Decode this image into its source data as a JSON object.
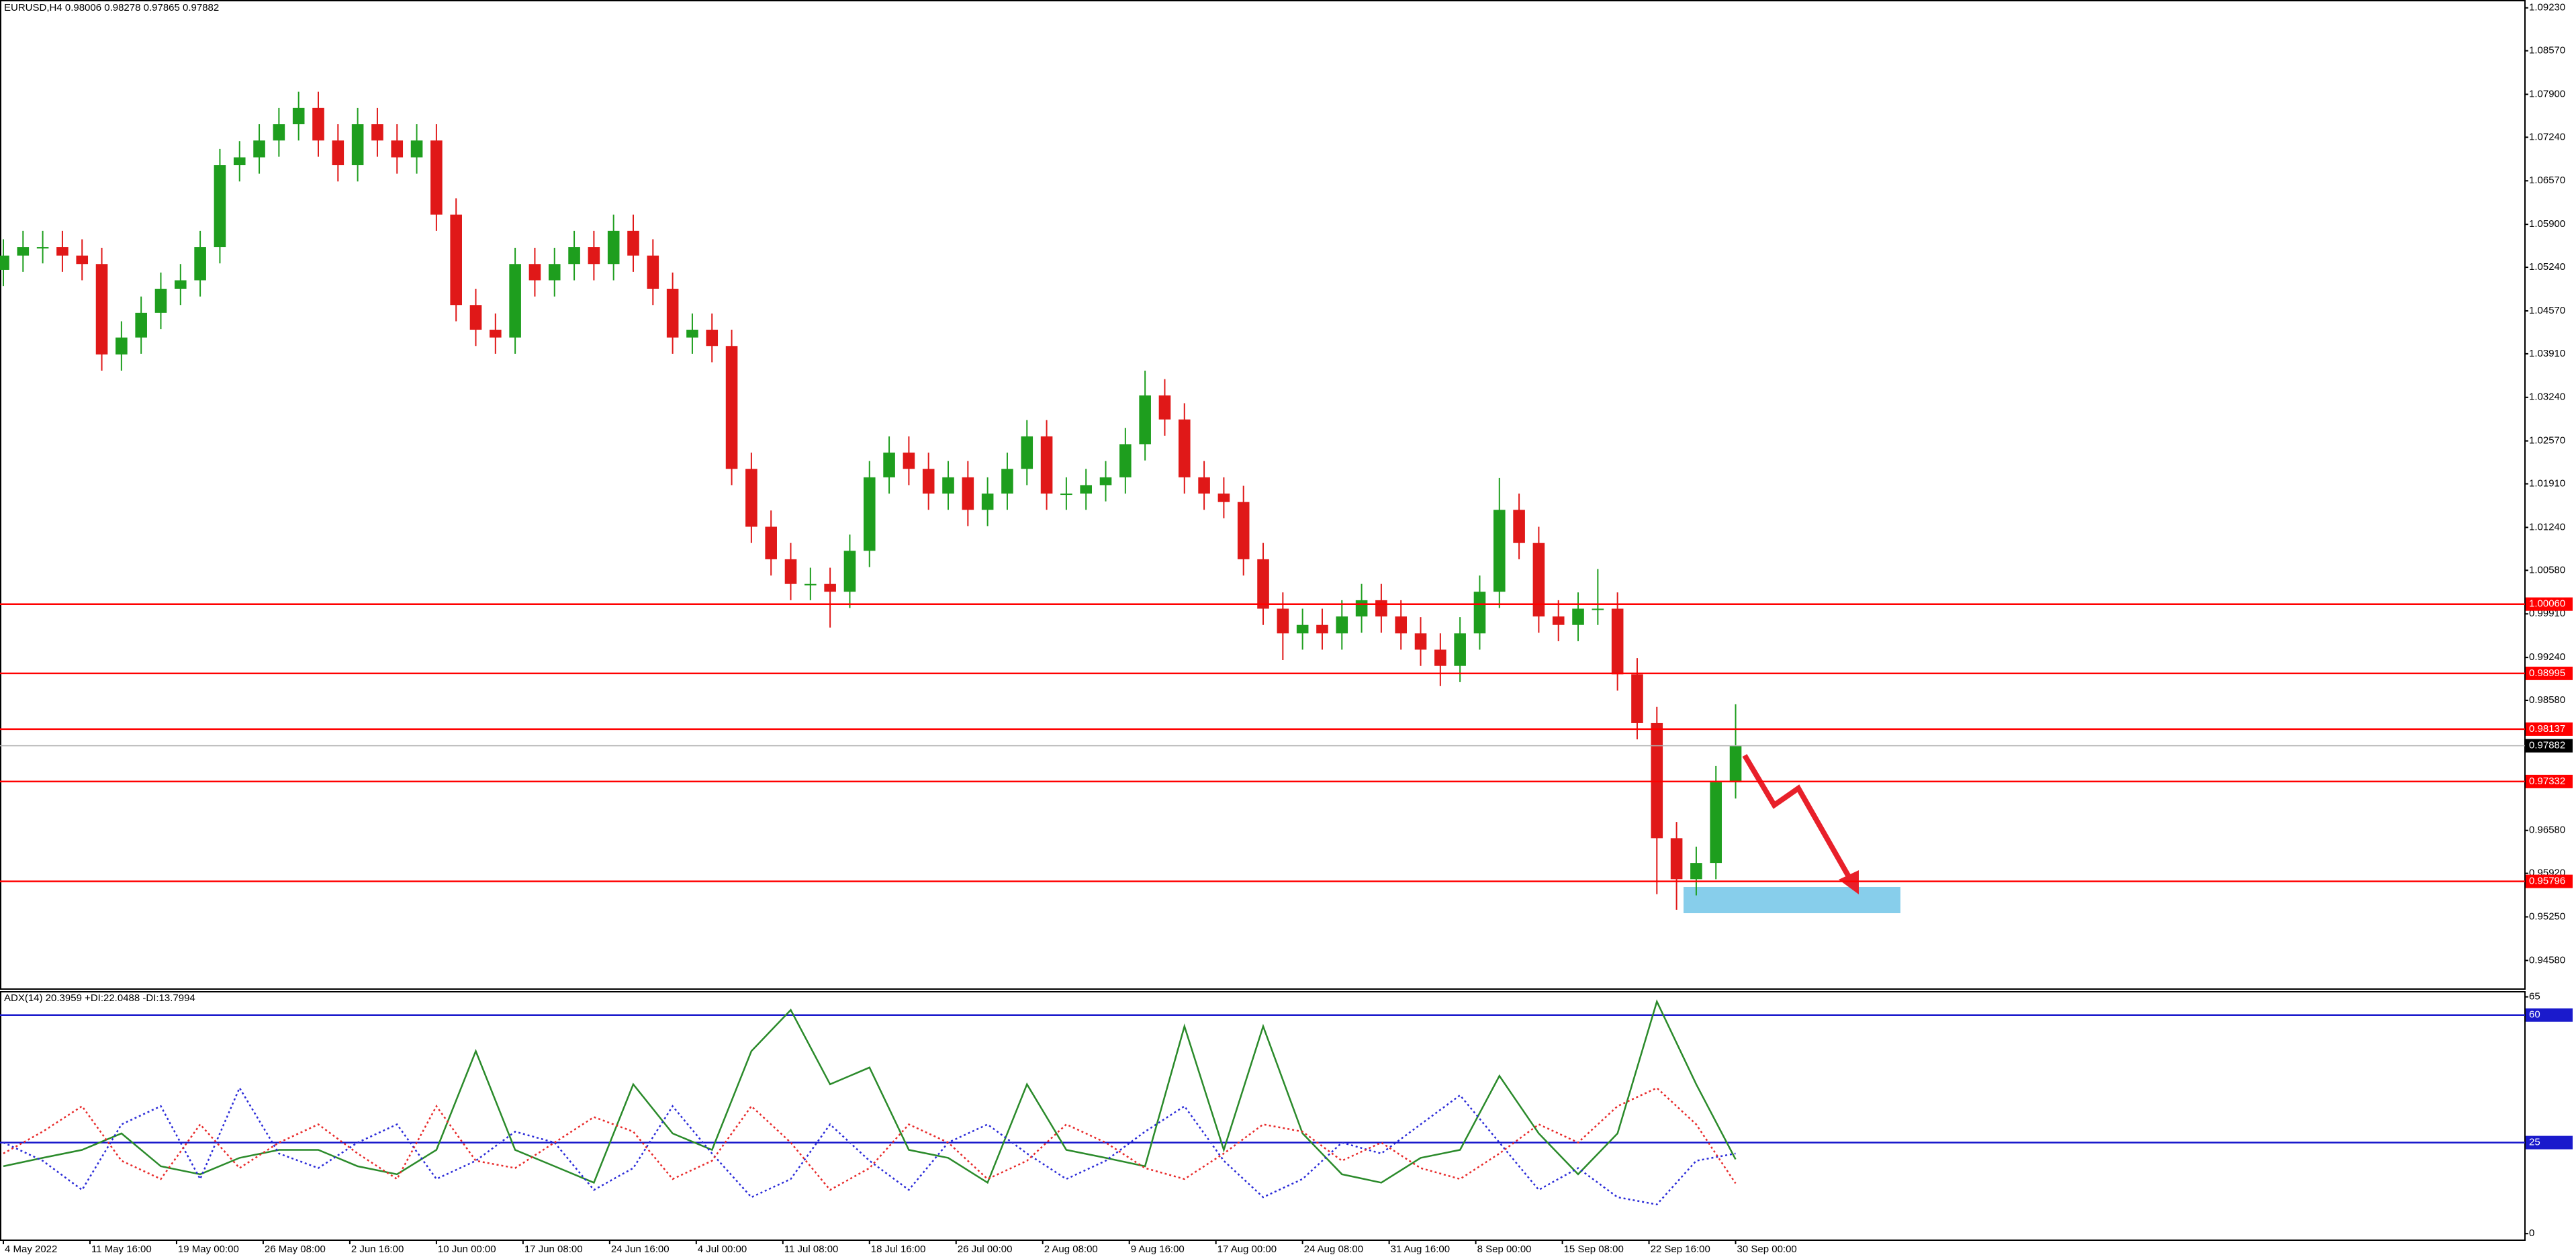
{
  "chart_data": [
    {
      "type": "candlestick",
      "title": "EURUSD,H4  0.98006 0.98278 0.97865 0.97882",
      "x": [
        0,
        10,
        20,
        30,
        40,
        50,
        60,
        70,
        80,
        90,
        100,
        110,
        120,
        130,
        140,
        150,
        160,
        170,
        180,
        190,
        200,
        210,
        220,
        230,
        240,
        250,
        260,
        270,
        280,
        290,
        300,
        310,
        320,
        330,
        340,
        350,
        360,
        370,
        380,
        390,
        400,
        410,
        420,
        430,
        440,
        450,
        460,
        470,
        480,
        490,
        500,
        510,
        520,
        530,
        540,
        550,
        560,
        570,
        580,
        590,
        600,
        610,
        620,
        630,
        640,
        650,
        660,
        670,
        680,
        690,
        700,
        710,
        720,
        730,
        740,
        750,
        760,
        770,
        780,
        790,
        800,
        810,
        820,
        830,
        840,
        850,
        860,
        870,
        880
      ],
      "open": [
        1.052,
        1.0542,
        1.0555,
        1.0555,
        1.0542,
        1.0529,
        1.039,
        1.0416,
        1.0454,
        1.0491,
        1.0504,
        1.0555,
        1.0681,
        1.0693,
        1.0719,
        1.0744,
        1.0769,
        1.0719,
        1.0681,
        1.0744,
        1.0719,
        1.0693,
        1.0719,
        1.0605,
        1.0466,
        1.0428,
        1.0416,
        1.0529,
        1.0504,
        1.0529,
        1.0555,
        1.0529,
        1.058,
        1.0542,
        1.0491,
        1.0416,
        1.0428,
        1.0403,
        1.0214,
        1.0125,
        1.0075,
        1.0037,
        1.0037,
        1.0025,
        1.0088,
        1.0201,
        1.0239,
        1.0214,
        1.0176,
        1.0201,
        1.0151,
        1.0176,
        1.0214,
        1.0264,
        1.0176,
        1.0176,
        1.0189,
        1.0201,
        1.0252,
        1.0327,
        1.029,
        1.0201,
        1.0176,
        1.0163,
        1.0075,
        0.9999,
        0.9961,
        0.9974,
        0.9961,
        0.9987,
        1.0012,
        0.9987,
        0.9961,
        0.9936,
        0.9911,
        0.9961,
        1.0025,
        1.0151,
        1.01,
        0.9987,
        0.9974,
        0.9999,
        0.9999,
        0.9898,
        0.9823,
        0.9646,
        0.9583,
        0.9608,
        0.9732
      ],
      "high": [
        1.0567,
        1.058,
        1.058,
        1.058,
        1.0567,
        1.0554,
        1.0441,
        1.0479,
        1.0516,
        1.0529,
        1.058,
        1.0706,
        1.0718,
        1.0744,
        1.0769,
        1.0794,
        1.0794,
        1.0744,
        1.0769,
        1.0769,
        1.0744,
        1.0744,
        1.0744,
        1.063,
        1.0491,
        1.0453,
        1.0554,
        1.0554,
        1.0554,
        1.058,
        1.058,
        1.0605,
        1.0605,
        1.0567,
        1.0516,
        1.0453,
        1.0453,
        1.0428,
        1.0239,
        1.015,
        1.01,
        1.0062,
        1.0062,
        1.0113,
        1.0226,
        1.0264,
        1.0264,
        1.0239,
        1.0226,
        1.0226,
        1.0201,
        1.0239,
        1.0289,
        1.0289,
        1.0201,
        1.0214,
        1.0226,
        1.0277,
        1.0365,
        1.0352,
        1.0315,
        1.0226,
        1.0201,
        1.0188,
        1.01,
        1.0024,
        0.9999,
        0.9999,
        1.0012,
        1.0037,
        1.0037,
        1.0012,
        0.9986,
        0.9961,
        0.9986,
        1.005,
        1.02,
        1.0176,
        1.0125,
        1.0012,
        1.0024,
        1.006,
        1.0024,
        0.9923,
        0.9848,
        0.9671,
        0.9633,
        0.9757,
        0.9852
      ],
      "low": [
        1.0495,
        1.0517,
        1.053,
        1.0517,
        1.0504,
        1.0365,
        1.0365,
        1.0391,
        1.0429,
        1.0466,
        1.0479,
        1.053,
        1.0656,
        1.0668,
        1.0694,
        1.0719,
        1.0694,
        1.0656,
        1.0656,
        1.0694,
        1.0668,
        1.0668,
        1.058,
        1.0441,
        1.0403,
        1.0391,
        1.0391,
        1.0479,
        1.0479,
        1.0504,
        1.0504,
        1.0504,
        1.0517,
        1.0466,
        1.0391,
        1.0391,
        1.0378,
        1.0189,
        1.01,
        1.005,
        1.0012,
        1.0012,
        0.997,
        1.0,
        1.0063,
        1.0176,
        1.0189,
        1.0151,
        1.0151,
        1.0126,
        1.0126,
        1.0151,
        1.0189,
        1.0151,
        1.0151,
        1.0151,
        1.0164,
        1.0176,
        1.0227,
        1.0265,
        1.0176,
        1.0151,
        1.0138,
        1.005,
        0.9974,
        0.992,
        0.9936,
        0.9936,
        0.9936,
        0.9962,
        0.9962,
        0.9936,
        0.9911,
        0.988,
        0.9886,
        0.9936,
        1.0,
        1.0075,
        0.9962,
        0.9949,
        0.9949,
        0.9974,
        0.9873,
        0.9798,
        0.956,
        0.9536,
        0.9558,
        0.9583,
        0.9707
      ],
      "close": [
        1.0542,
        1.0555,
        1.0555,
        1.0542,
        1.0529,
        1.039,
        1.0416,
        1.0454,
        1.0491,
        1.0504,
        1.0555,
        1.0681,
        1.0693,
        1.0719,
        1.0744,
        1.0769,
        1.0719,
        1.0681,
        1.0744,
        1.0719,
        1.0693,
        1.0719,
        1.0605,
        1.0466,
        1.0428,
        1.0416,
        1.0529,
        1.0504,
        1.0529,
        1.0555,
        1.0529,
        1.058,
        1.0542,
        1.0491,
        1.0416,
        1.0428,
        1.0403,
        1.0214,
        1.0125,
        1.0075,
        1.0037,
        1.0037,
        1.0025,
        1.0088,
        1.0201,
        1.0239,
        1.0214,
        1.0176,
        1.0201,
        1.0151,
        1.0176,
        1.0214,
        1.0264,
        1.0176,
        1.0176,
        1.0189,
        1.0201,
        1.0252,
        1.0327,
        1.029,
        1.0201,
        1.0176,
        1.0163,
        1.0075,
        0.9999,
        0.9961,
        0.9974,
        0.9961,
        0.9987,
        1.0012,
        0.9987,
        0.9961,
        0.9936,
        0.9911,
        0.9961,
        1.0025,
        1.0151,
        1.01,
        0.9987,
        0.9974,
        0.9999,
        0.9999,
        0.9898,
        0.9823,
        0.9646,
        0.9583,
        0.9608,
        0.9732,
        0.9788
      ],
      "up_color": "#1e9e1e",
      "down_color": "#e01818",
      "xlim": [
        -1.7,
        1281
      ],
      "ylim": [
        0.9414,
        1.0933
      ],
      "yticks": [
        {
          "value": 1.0923,
          "label": "1.09230"
        },
        {
          "value": 1.0857,
          "label": "1.08570"
        },
        {
          "value": 1.079,
          "label": "1.07900"
        },
        {
          "value": 1.0724,
          "label": "1.07240"
        },
        {
          "value": 1.0657,
          "label": "1.06570"
        },
        {
          "value": 1.059,
          "label": "1.05900"
        },
        {
          "value": 1.0524,
          "label": "1.05240"
        },
        {
          "value": 1.0457,
          "label": "1.04570"
        },
        {
          "value": 1.0391,
          "label": "1.03910"
        },
        {
          "value": 1.0324,
          "label": "1.03240"
        },
        {
          "value": 1.0257,
          "label": "1.02570"
        },
        {
          "value": 1.0191,
          "label": "1.01910"
        },
        {
          "value": 1.0124,
          "label": "1.01240"
        },
        {
          "value": 1.0058,
          "label": "1.00580"
        },
        {
          "value": 0.9991,
          "label": "0.99910"
        },
        {
          "value": 0.9924,
          "label": "0.99240"
        },
        {
          "value": 0.9858,
          "label": "0.98580"
        },
        {
          "value": 0.9658,
          "label": "0.96580"
        },
        {
          "value": 0.9592,
          "label": "0.95920"
        },
        {
          "value": 0.9525,
          "label": "0.95250"
        },
        {
          "value": 0.9458,
          "label": "0.94580"
        }
      ],
      "levels": [
        {
          "value": 1.0006,
          "label": "1.00060"
        },
        {
          "value": 0.98995,
          "label": "0.98995"
        },
        {
          "value": 0.98137,
          "label": "0.98137"
        },
        {
          "value": 0.97332,
          "label": "0.97332"
        },
        {
          "value": 0.95796,
          "label": "0.95796"
        }
      ],
      "level_color": "#ff0000",
      "last": {
        "value": 0.97882,
        "label": "0.97882"
      }
    },
    {
      "type": "line",
      "title": "ADX(14) 20.3959 +DI:22.0488 -DI:13.7994",
      "x": [
        0,
        20,
        40,
        60,
        80,
        100,
        120,
        140,
        160,
        180,
        200,
        220,
        240,
        260,
        280,
        300,
        320,
        340,
        360,
        380,
        400,
        420,
        440,
        460,
        480,
        500,
        520,
        540,
        560,
        580,
        600,
        620,
        640,
        660,
        680,
        700,
        720,
        740,
        760,
        780,
        800,
        820,
        840,
        860,
        880
      ],
      "series": [
        {
          "color": "#2a8a2a",
          "style": "solid",
          "values": [
            18.5,
            20.8,
            23,
            27.5,
            18.5,
            16.3,
            20.8,
            23,
            23,
            18.5,
            16.3,
            23,
            50.1,
            23,
            18.5,
            14,
            41,
            27.5,
            23,
            50.1,
            61.4,
            41,
            45.6,
            23,
            20.8,
            14,
            41,
            23,
            20.8,
            18.5,
            56.9,
            23,
            56.9,
            27.5,
            16.3,
            14,
            20.8,
            23,
            43.3,
            27.5,
            16.3,
            27.5,
            63.7,
            41,
            20.4
          ]
        },
        {
          "color": "#2b2bd8",
          "style": "dotted",
          "values": [
            25,
            20,
            12,
            30,
            35,
            15,
            40,
            22,
            18,
            25,
            30,
            15,
            20,
            28,
            25,
            12,
            18,
            35,
            22,
            10,
            15,
            30,
            20,
            12,
            25,
            30,
            22,
            15,
            20,
            28,
            35,
            20,
            10,
            15,
            25,
            22,
            30,
            38,
            25,
            12,
            18,
            10,
            8,
            20,
            22
          ]
        },
        {
          "color": "#e82a2a",
          "style": "dotted",
          "values": [
            22,
            28,
            35,
            20,
            15,
            30,
            18,
            25,
            30,
            22,
            15,
            35,
            20,
            18,
            25,
            32,
            28,
            15,
            20,
            35,
            25,
            12,
            18,
            30,
            25,
            15,
            20,
            30,
            25,
            18,
            15,
            22,
            30,
            28,
            20,
            25,
            18,
            15,
            22,
            30,
            25,
            35,
            40,
            30,
            13.8
          ]
        }
      ],
      "xlim": [
        -1.7,
        1281
      ],
      "ylim": [
        -1.8,
        66.4
      ],
      "yticks": [
        0,
        65
      ],
      "levels": [
        60,
        25
      ],
      "level_color": "#1a1acc",
      "xticks": [
        {
          "value": 0,
          "label": "4 May 2022"
        },
        {
          "value": 44,
          "label": "11 May 16:00"
        },
        {
          "value": 88,
          "label": "19 May 00:00"
        },
        {
          "value": 132,
          "label": "26 May 08:00"
        },
        {
          "value": 176,
          "label": "2 Jun 16:00"
        },
        {
          "value": 220,
          "label": "10 Jun 00:00"
        },
        {
          "value": 264,
          "label": "17 Jun 08:00"
        },
        {
          "value": 308,
          "label": "24 Jun 16:00"
        },
        {
          "value": 352,
          "label": "4 Jul 00:00"
        },
        {
          "value": 396,
          "label": "11 Jul 08:00"
        },
        {
          "value": 440,
          "label": "18 Jul 16:00"
        },
        {
          "value": 484,
          "label": "26 Jul 00:00"
        },
        {
          "value": 528,
          "label": "2 Aug 08:00"
        },
        {
          "value": 572,
          "label": "9 Aug 16:00"
        },
        {
          "value": 616,
          "label": "17 Aug 00:00"
        },
        {
          "value": 660,
          "label": "24 Aug 08:00"
        },
        {
          "value": 704,
          "label": "31 Aug 16:00"
        },
        {
          "value": 748,
          "label": "8 Sep 00:00"
        },
        {
          "value": 792,
          "label": "15 Sep 08:00"
        },
        {
          "value": 836,
          "label": "22 Sep 16:00"
        },
        {
          "value": 880,
          "label": "30 Sep 00:00"
        }
      ]
    }
  ]
}
